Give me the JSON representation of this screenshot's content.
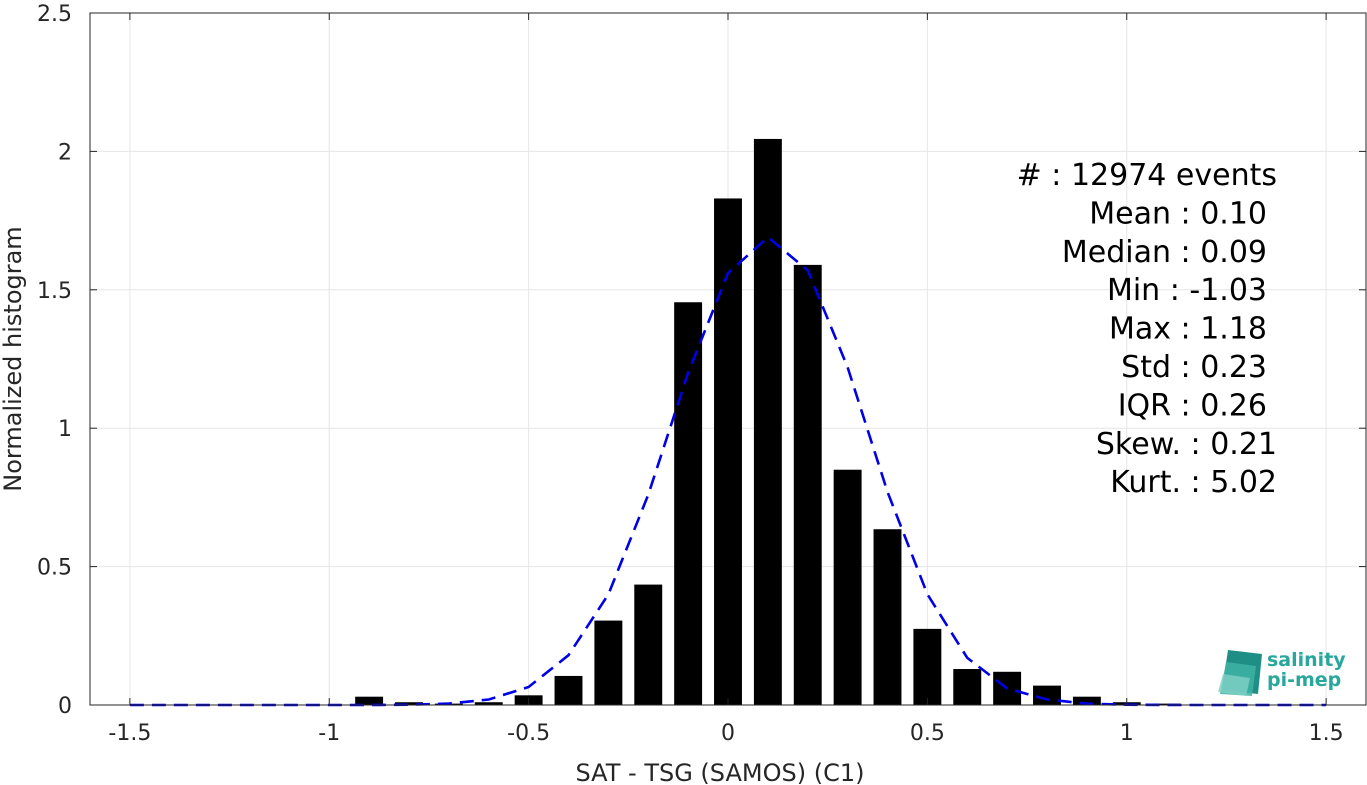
{
  "chart_data": {
    "type": "bar",
    "xlabel": "SAT - TSG (SAMOS) (C1)",
    "ylabel": "Normalized histogram",
    "xlim": [
      -1.6,
      1.6
    ],
    "ylim": [
      0,
      2.5
    ],
    "grid": true,
    "x_ticks": [
      -1.5,
      -1,
      -0.5,
      0,
      0.5,
      1,
      1.5
    ],
    "x_tick_labels": [
      "-1.5",
      "-1",
      "-0.5",
      "0",
      "0.5",
      "1",
      "1.5"
    ],
    "y_ticks": [
      0,
      0.5,
      1,
      1.5,
      2,
      2.5
    ],
    "y_tick_labels": [
      "0",
      "0.5",
      "1",
      "1.5",
      "2",
      "2.5"
    ],
    "bar_color": "#000000",
    "bar_width": 0.07,
    "histogram": {
      "x": [
        -0.9,
        -0.8,
        -0.7,
        -0.6,
        -0.5,
        -0.4,
        -0.3,
        -0.2,
        -0.1,
        0.0,
        0.1,
        0.2,
        0.3,
        0.4,
        0.5,
        0.6,
        0.7,
        0.8,
        0.9,
        1.0,
        1.1,
        1.2
      ],
      "values": [
        0.03,
        0.01,
        0.005,
        0.01,
        0.035,
        0.105,
        0.305,
        0.435,
        1.455,
        1.83,
        2.045,
        1.59,
        0.85,
        0.635,
        0.275,
        0.13,
        0.12,
        0.07,
        0.03,
        0.01,
        0.005,
        0.002
      ]
    },
    "fit_curve": {
      "style": "dashed",
      "color": "#0000e6",
      "x": [
        -1.5,
        -1.4,
        -1.3,
        -1.2,
        -1.1,
        -1.0,
        -0.9,
        -0.8,
        -0.7,
        -0.6,
        -0.5,
        -0.4,
        -0.3,
        -0.2,
        -0.1,
        0.0,
        0.1,
        0.2,
        0.3,
        0.4,
        0.5,
        0.6,
        0.7,
        0.8,
        0.9,
        1.0,
        1.1,
        1.2,
        1.3,
        1.4,
        1.5
      ],
      "y": [
        0,
        0,
        0,
        0,
        0,
        0,
        0,
        0.001,
        0.005,
        0.02,
        0.065,
        0.18,
        0.4,
        0.76,
        1.2,
        1.56,
        1.69,
        1.57,
        1.22,
        0.77,
        0.4,
        0.17,
        0.06,
        0.02,
        0.005,
        0.001,
        0,
        0,
        0,
        0,
        0
      ]
    },
    "annotations": [
      "#  : 12974 events",
      "Mean : 0.10",
      "Median : 0.09",
      "Min : -1.03",
      "Max : 1.18",
      "Std : 0.23",
      "IQR : 0.26",
      "Skew. : 0.21",
      "Kurt. : 5.02"
    ]
  },
  "logo": {
    "line1": "salinity",
    "line2": "pi-mep"
  }
}
